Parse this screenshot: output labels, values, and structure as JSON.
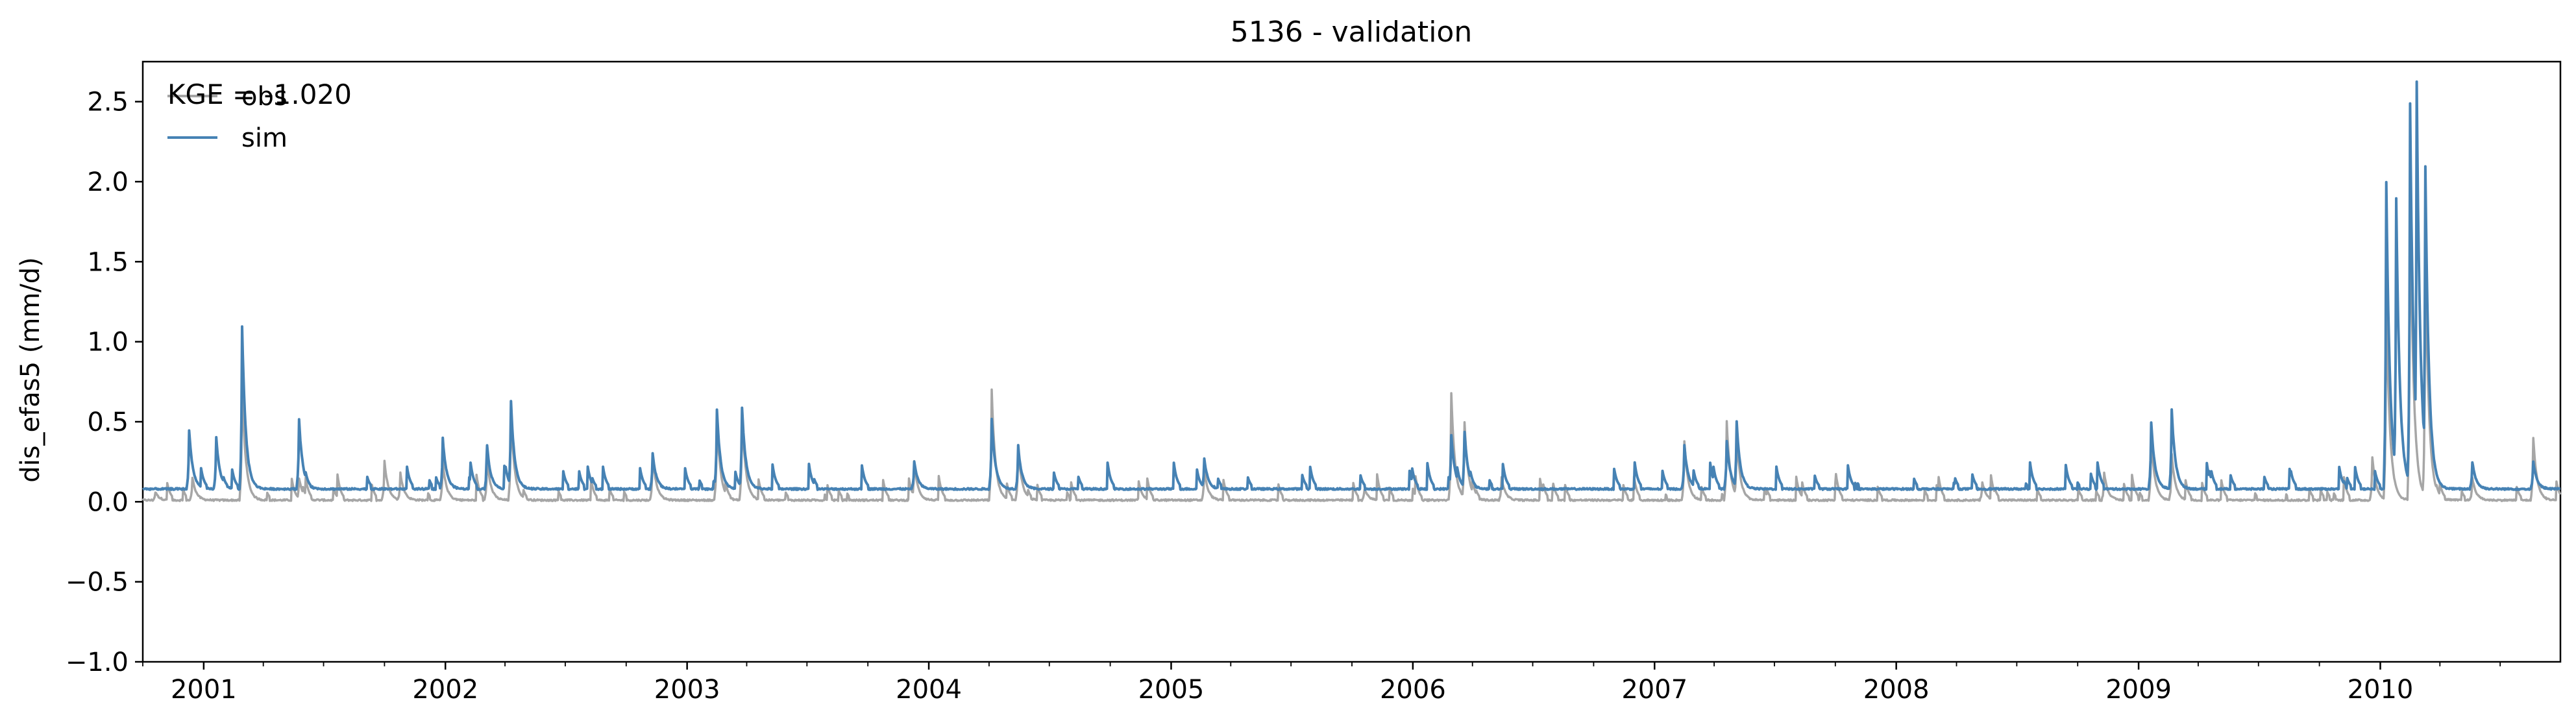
{
  "chart_data": {
    "type": "line",
    "title": "5136 - validation",
    "ylabel": "dis_efas5 (mm/d)",
    "xlabel": "",
    "ylim": [
      -1.0,
      2.75
    ],
    "xlim": [
      "2000-10-01",
      "2010-09-30"
    ],
    "yticks": [
      -1.0,
      -0.5,
      0.0,
      0.5,
      1.0,
      1.5,
      2.0,
      2.5
    ],
    "ytick_labels": [
      "−1.0",
      "−0.5",
      "0.0",
      "0.5",
      "1.0",
      "1.5",
      "2.0",
      "2.5"
    ],
    "xtick_labels": [
      "2001",
      "2002",
      "2003",
      "2004",
      "2005",
      "2006",
      "2007",
      "2008",
      "2009",
      "2010"
    ],
    "grid": false,
    "legend_position": "top-left",
    "annotation": "KGE = -1.020",
    "series": [
      {
        "name": "obs",
        "color": "#a6a6a6",
        "baseline": 0.01,
        "peaks": [
          [
            "2000-10-20",
            0.06
          ],
          [
            "2000-12-15",
            0.15
          ],
          [
            "2001-02-28",
            0.72
          ],
          [
            "2001-05-25",
            0.15
          ],
          [
            "2001-10-01",
            0.26
          ],
          [
            "2001-10-25",
            0.18
          ],
          [
            "2001-12-28",
            0.25
          ],
          [
            "2002-03-05",
            0.27
          ],
          [
            "2002-04-10",
            0.55
          ],
          [
            "2002-11-10",
            0.3
          ],
          [
            "2003-02-15",
            0.52
          ],
          [
            "2003-03-25",
            0.55
          ],
          [
            "2003-12-10",
            0.25
          ],
          [
            "2004-04-05",
            0.7
          ],
          [
            "2004-05-15",
            0.35
          ],
          [
            "2004-11-15",
            0.08
          ],
          [
            "2005-02-20",
            0.2
          ],
          [
            "2005-10-20",
            0.08
          ],
          [
            "2006-02-28",
            0.68
          ],
          [
            "2006-03-20",
            0.5
          ],
          [
            "2006-05-15",
            0.15
          ],
          [
            "2007-02-15",
            0.38
          ],
          [
            "2007-04-20",
            0.5
          ],
          [
            "2007-05-05",
            0.42
          ],
          [
            "2008-05-10",
            0.12
          ],
          [
            "2008-11-10",
            0.18
          ],
          [
            "2009-01-20",
            0.4
          ],
          [
            "2009-02-20",
            0.3
          ],
          [
            "2009-12-20",
            0.28
          ],
          [
            "2010-01-10",
            1.25
          ],
          [
            "2010-02-15",
            1.95
          ],
          [
            "2010-03-10",
            1.55
          ],
          [
            "2010-05-20",
            0.15
          ],
          [
            "2010-08-20",
            0.4
          ]
        ]
      },
      {
        "name": "sim",
        "color": "#4682b4",
        "baseline": 0.08,
        "peaks": [
          [
            "2000-12-10",
            0.45
          ],
          [
            "2001-01-20",
            0.4
          ],
          [
            "2001-02-28",
            1.09
          ],
          [
            "2001-05-25",
            0.52
          ],
          [
            "2001-12-28",
            0.4
          ],
          [
            "2002-03-05",
            0.35
          ],
          [
            "2002-04-10",
            0.63
          ],
          [
            "2002-11-10",
            0.3
          ],
          [
            "2003-02-15",
            0.58
          ],
          [
            "2003-03-25",
            0.59
          ],
          [
            "2003-12-10",
            0.25
          ],
          [
            "2004-04-05",
            0.52
          ],
          [
            "2004-05-15",
            0.35
          ],
          [
            "2005-02-20",
            0.27
          ],
          [
            "2006-02-28",
            0.42
          ],
          [
            "2006-03-20",
            0.44
          ],
          [
            "2007-02-15",
            0.35
          ],
          [
            "2007-04-20",
            0.38
          ],
          [
            "2007-05-05",
            0.5
          ],
          [
            "2009-01-20",
            0.5
          ],
          [
            "2009-02-20",
            0.58
          ],
          [
            "2010-01-10",
            2.0
          ],
          [
            "2010-01-25",
            1.9
          ],
          [
            "2010-02-15",
            2.49
          ],
          [
            "2010-02-25",
            2.62
          ],
          [
            "2010-03-10",
            2.1
          ],
          [
            "2010-05-20",
            0.25
          ],
          [
            "2010-08-20",
            0.25
          ]
        ]
      }
    ]
  }
}
